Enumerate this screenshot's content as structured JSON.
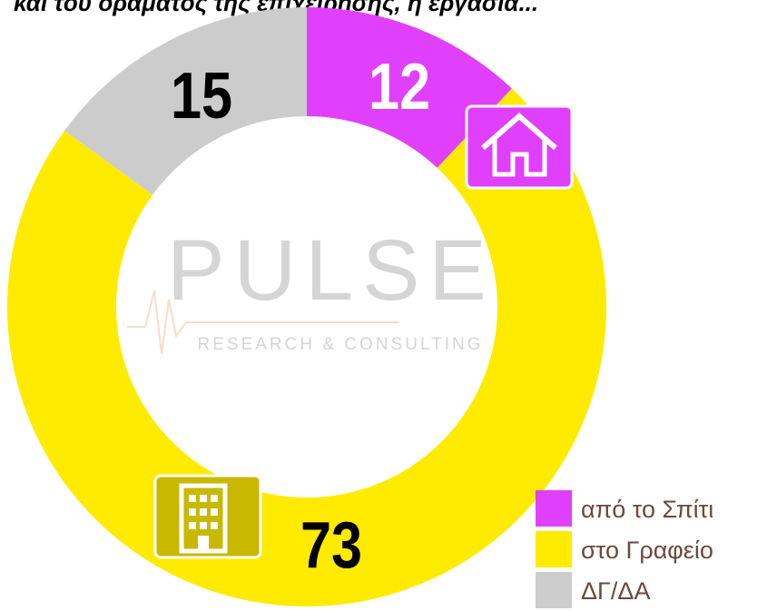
{
  "chart_data": {
    "type": "donut",
    "title": "και του οράματος της επιχείρησης, η εργασία...",
    "categories": [
      "από το Σπίτι",
      "στο Γραφείο",
      "ΔΓ/ΔΑ"
    ],
    "values": [
      12,
      73,
      15
    ],
    "colors": [
      "#e040fb",
      "#ffeb00",
      "#cccccc"
    ],
    "legend": "bottom-right",
    "watermark": {
      "title": "PULSE",
      "subtitle": "RESEARCH & CONSULTING"
    }
  }
}
